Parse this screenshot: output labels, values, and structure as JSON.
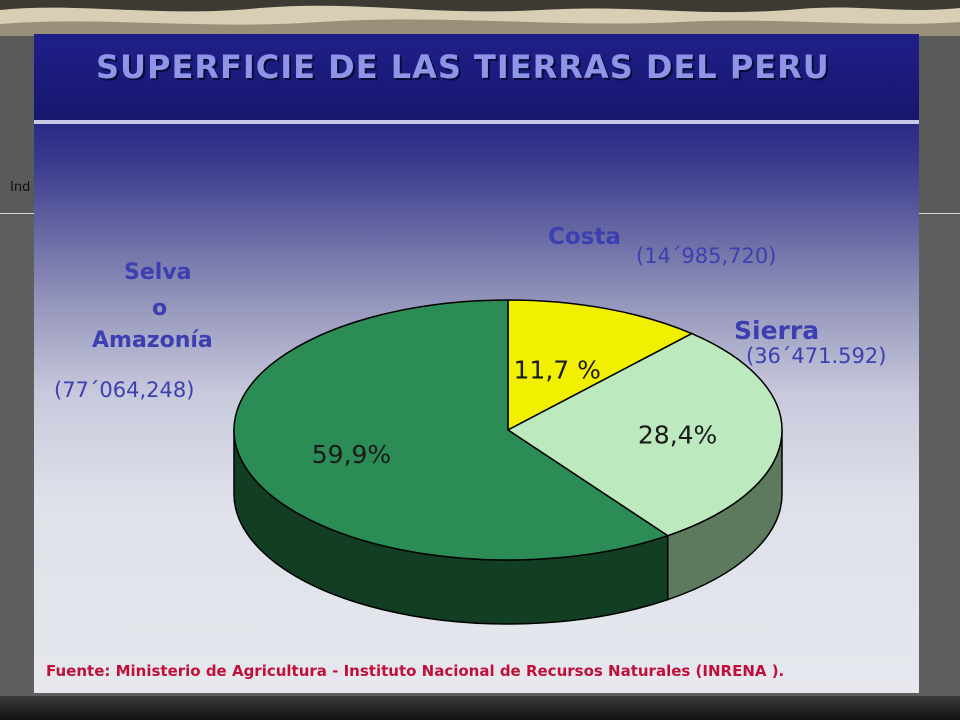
{
  "presentation": {
    "side_text": "Ind"
  },
  "chart_data": {
    "type": "pie",
    "title": "SUPERFICIE DE LAS TIERRAS DEL PERU",
    "slices": [
      {
        "name": "Costa",
        "value_label": "(14´985,720)",
        "percent": 11.7,
        "percent_label": "11,7 %",
        "color": "#f0f000",
        "side_color": "#9a9a00"
      },
      {
        "name": "Sierra",
        "value_label": "(36´471.592)",
        "percent": 28.4,
        "percent_label": "28,4%",
        "color": "#bde9bf",
        "side_color": "#5d7a5e"
      },
      {
        "name": "Selva o Amazonía",
        "name_lines": [
          "Selva",
          "o",
          "Amazonía"
        ],
        "value_label": "(77´064,248)",
        "percent": 59.9,
        "percent_label": "59,9%",
        "color": "#2b8c56",
        "side_color": "#123f24"
      }
    ],
    "source_note": "Fuente: Ministerio de Agricultura - Instituto Nacional de Recursos Naturales (INRENA )."
  }
}
